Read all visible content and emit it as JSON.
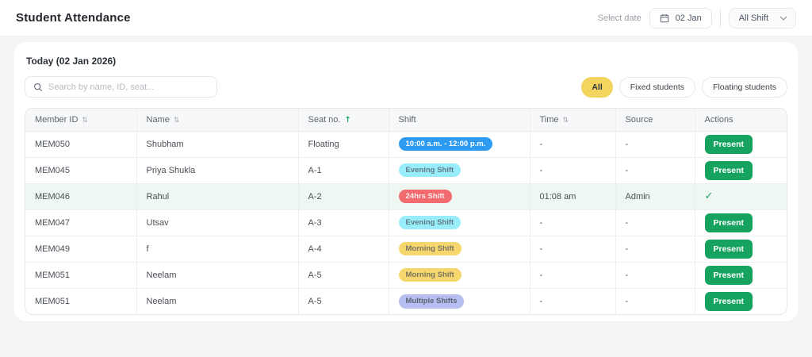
{
  "header": {
    "title": "Student Attendance",
    "select_date_label": "Select date",
    "date_value": "02 Jan",
    "shift_filter": "All Shift"
  },
  "card": {
    "today_label": "Today (02 Jan 2026)",
    "search_placeholder": "Search by name, ID, seat...",
    "filters": [
      {
        "label": "All",
        "active": true
      },
      {
        "label": "Fixed students",
        "active": false
      },
      {
        "label": "Floating students",
        "active": false
      }
    ]
  },
  "table": {
    "columns": [
      {
        "label": "Member ID",
        "sort": "both"
      },
      {
        "label": "Name",
        "sort": "both"
      },
      {
        "label": "Seat no.",
        "sort": "asc"
      },
      {
        "label": "Shift",
        "sort": "none"
      },
      {
        "label": "Time",
        "sort": "both"
      },
      {
        "label": "Source",
        "sort": "none"
      },
      {
        "label": "Actions",
        "sort": "none"
      }
    ],
    "rows": [
      {
        "member_id": "MEM050",
        "name": "Shubham",
        "seat": "Floating",
        "shift": {
          "label": "10:00 a.m. - 12:00 p.m.",
          "variant": "time"
        },
        "time": "-",
        "source": "-",
        "action": "present",
        "highlighted": false
      },
      {
        "member_id": "MEM045",
        "name": "Priya Shukla",
        "seat": "A-1",
        "shift": {
          "label": "Evening Shift",
          "variant": "evening"
        },
        "time": "-",
        "source": "-",
        "action": "present",
        "highlighted": false
      },
      {
        "member_id": "MEM046",
        "name": "Rahul",
        "seat": "A-2",
        "shift": {
          "label": "24hrs Shift",
          "variant": "allday"
        },
        "time": "01:08 am",
        "source": "Admin",
        "action": "check",
        "highlighted": true
      },
      {
        "member_id": "MEM047",
        "name": "Utsav",
        "seat": "A-3",
        "shift": {
          "label": "Evening Shift",
          "variant": "evening"
        },
        "time": "-",
        "source": "-",
        "action": "present",
        "highlighted": false
      },
      {
        "member_id": "MEM049",
        "name": "f",
        "seat": "A-4",
        "shift": {
          "label": "Morning Shift",
          "variant": "morning"
        },
        "time": "-",
        "source": "-",
        "action": "present",
        "highlighted": false
      },
      {
        "member_id": "MEM051",
        "name": "Neelam",
        "seat": "A-5",
        "shift": {
          "label": "Morning Shift",
          "variant": "morning"
        },
        "time": "-",
        "source": "-",
        "action": "present",
        "highlighted": false
      },
      {
        "member_id": "MEM051",
        "name": "Neelam",
        "seat": "A-5",
        "shift": {
          "label": "Multiple Shifts",
          "variant": "multiple"
        },
        "time": "-",
        "source": "-",
        "action": "present",
        "highlighted": false
      }
    ],
    "badge_variants": {
      "time": {
        "bg": "#2e9bf3",
        "fg": "#ffffff"
      },
      "evening": {
        "bg": "#99edfb",
        "fg": "#5f7a85"
      },
      "allday": {
        "bg": "#f26b6e",
        "fg": "#fdecec"
      },
      "morning": {
        "bg": "#f6d76e",
        "fg": "#7d7460"
      },
      "multiple": {
        "bg": "#b6bdf1",
        "fg": "#5c6370"
      }
    },
    "present_label": "Present",
    "check_glyph": "✓",
    "sort_both_glyph": "⇅",
    "sort_asc_glyph": "↑"
  },
  "colors": {
    "present_green": "#16a35f",
    "check_green": "#22a366",
    "active_pill_yellow": "#f2d45f",
    "highlight_row": "#eff7f3"
  }
}
